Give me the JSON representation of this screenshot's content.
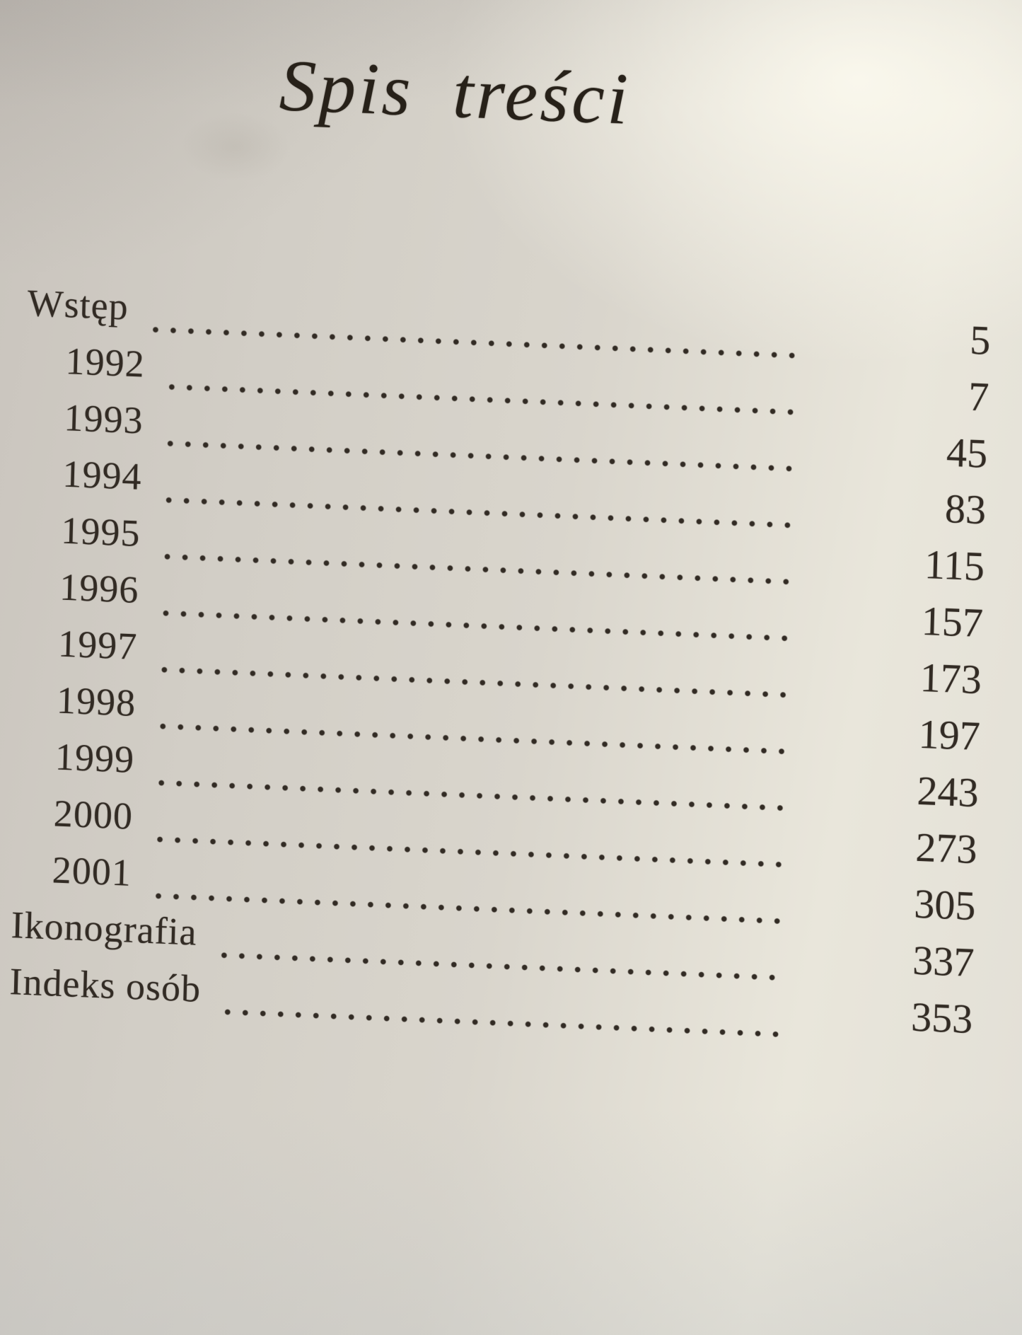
{
  "document": {
    "title": "Spis treści"
  },
  "toc": {
    "entries": [
      {
        "label": "Wstęp",
        "page": "5",
        "indent": false
      },
      {
        "label": "1992",
        "page": "7",
        "indent": true
      },
      {
        "label": "1993",
        "page": "45",
        "indent": true
      },
      {
        "label": "1994",
        "page": "83",
        "indent": true
      },
      {
        "label": "1995",
        "page": "115",
        "indent": true
      },
      {
        "label": "1996",
        "page": "157",
        "indent": true
      },
      {
        "label": "1997",
        "page": "173",
        "indent": true
      },
      {
        "label": "1998",
        "page": "197",
        "indent": true
      },
      {
        "label": "1999",
        "page": "243",
        "indent": true
      },
      {
        "label": "2000",
        "page": "273",
        "indent": true
      },
      {
        "label": "2001",
        "page": "305",
        "indent": true
      },
      {
        "label": "Ikonografia",
        "page": "337",
        "indent": false
      },
      {
        "label": "Indeks osób",
        "page": "353",
        "indent": false
      }
    ]
  },
  "colors": {
    "ink": "#322b24",
    "paper_light": "#e9e6db",
    "paper_mid": "#d9d5cc",
    "paper_dark": "#c9c4bd"
  }
}
